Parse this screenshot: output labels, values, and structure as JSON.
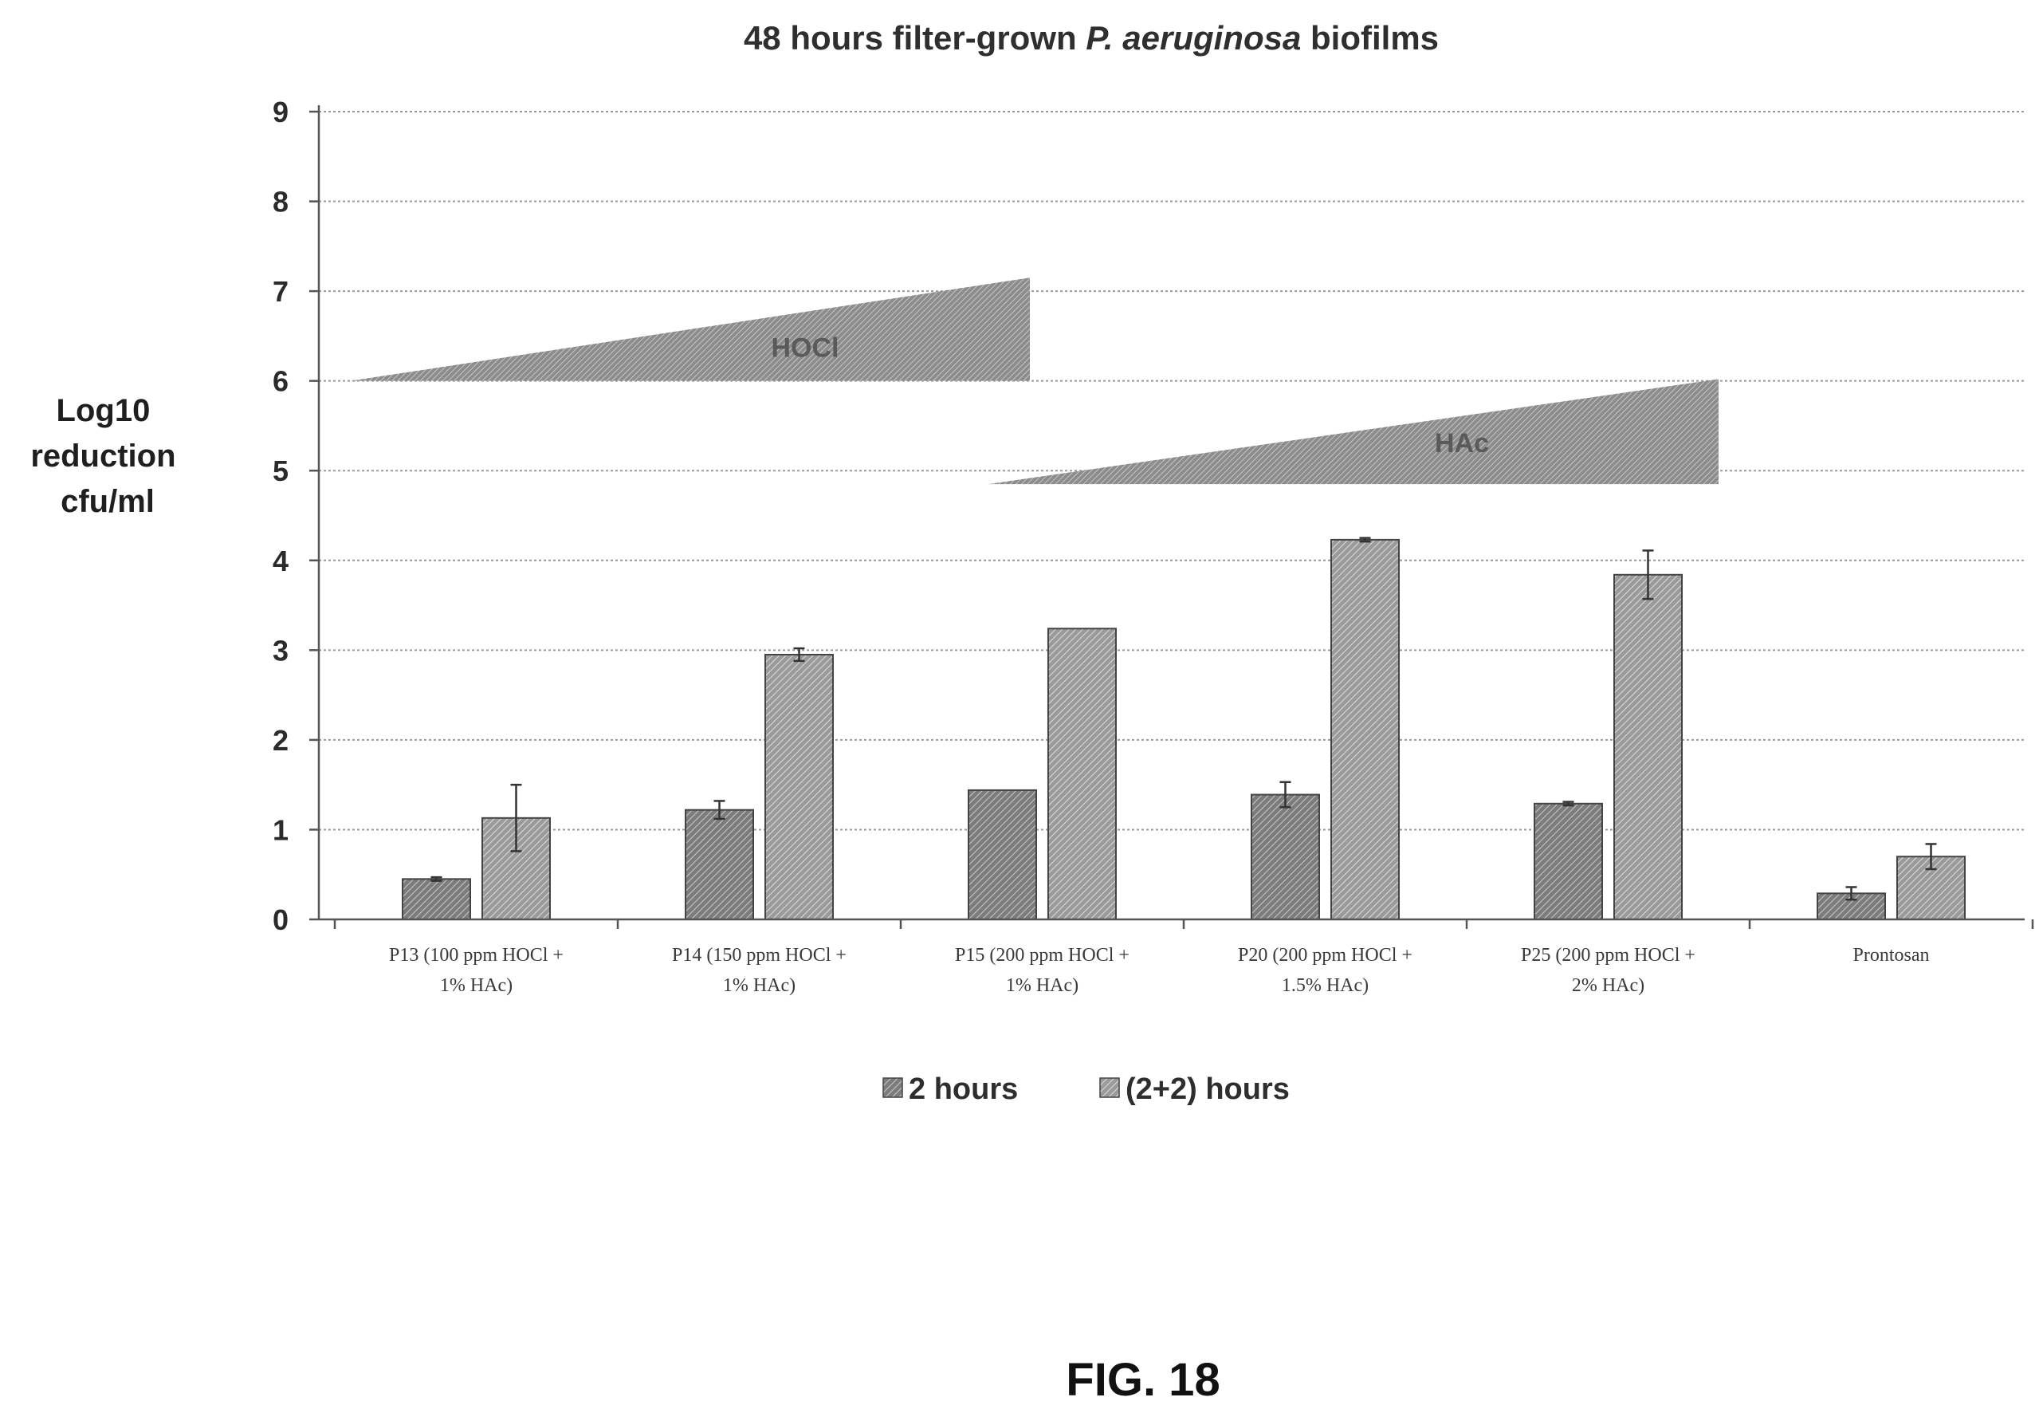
{
  "chart_data": {
    "type": "bar",
    "title_parts": [
      "48 hours filter-grown ",
      "P. aeruginosa",
      " biofilms"
    ],
    "ylabel_lines": [
      "Log10",
      "reduction",
      "cfu/ml"
    ],
    "ylim": [
      0,
      9
    ],
    "yticks": [
      "0",
      "1",
      "2",
      "3",
      "4",
      "5",
      "6",
      "7",
      "8",
      "9"
    ],
    "grid": true,
    "categories": [
      [
        "P13 (100 ppm HOCl +",
        "1% HAc)"
      ],
      [
        "P14 (150 ppm HOCl +",
        "1% HAc)"
      ],
      [
        "P15 (200 ppm HOCl +",
        "1% HAc)"
      ],
      [
        "P20 (200 ppm HOCl +",
        "1.5% HAc)"
      ],
      [
        "P25 (200 ppm HOCl +",
        "2% HAc)"
      ],
      [
        "Prontosan"
      ]
    ],
    "series": [
      {
        "name": "2 hours",
        "values": [
          0.45,
          1.22,
          1.44,
          1.39,
          1.29,
          0.29
        ],
        "errors": [
          0.02,
          0.1,
          0,
          0.14,
          0.02,
          0.07
        ],
        "color": "#8a8a8a"
      },
      {
        "name": "(2+2) hours",
        "values": [
          1.13,
          2.95,
          3.24,
          4.23,
          3.84,
          0.7
        ],
        "errors": [
          0.37,
          0.07,
          0,
          0.02,
          0.27,
          0.14
        ],
        "color": "#9c9c9c"
      }
    ],
    "legend_placement": "bottom-center",
    "annotations": [
      {
        "label": "HOCl",
        "shape": "wedge",
        "y_start": 6.0,
        "y_top_end": 7.15,
        "from_category": 0,
        "to_category": 2
      },
      {
        "label": "HAc",
        "shape": "wedge",
        "y_start": 4.85,
        "y_top_end": 6.02,
        "from_category": 2,
        "to_category": 4
      }
    ]
  },
  "caption": "FIG. 18",
  "colors": {
    "bar_dark": "#8a8a8a",
    "bar_light": "#9c9c9c",
    "wedge": "#9a9a9a",
    "grid": "#9a9a9a"
  }
}
